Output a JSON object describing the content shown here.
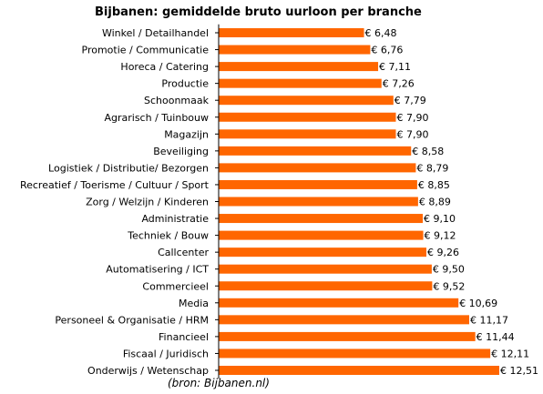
{
  "chart_data": {
    "type": "bar",
    "orientation": "horizontal",
    "title": "Bijbanen: gemiddelde bruto uurloon per branche",
    "source": "(bron: Bijbanen.nl)",
    "value_prefix": "€ ",
    "bar_color": "#ff6600",
    "xlim": [
      0,
      12.51
    ],
    "grid": false,
    "categories": [
      "Winkel / Detailhandel",
      "Promotie / Communicatie",
      "Horeca / Catering",
      "Productie",
      "Schoonmaak",
      "Agrarisch / Tuinbouw",
      "Magazijn",
      "Beveiliging",
      "Logistiek / Distributie/ Bezorgen",
      "Recreatief / Toerisme / Cultuur / Sport",
      "Zorg / Welzijn / Kinderen",
      "Administratie",
      "Techniek / Bouw",
      "Callcenter",
      "Automatisering / ICT",
      "Commercieel",
      "Media",
      "Personeel & Organisatie / HRM",
      "Financieel",
      "Fiscaal / Juridisch",
      "Onderwijs / Wetenschap"
    ],
    "values": [
      6.48,
      6.76,
      7.11,
      7.26,
      7.79,
      7.9,
      7.9,
      8.58,
      8.79,
      8.85,
      8.89,
      9.1,
      9.12,
      9.26,
      9.5,
      9.52,
      10.69,
      11.17,
      11.44,
      12.11,
      12.51
    ],
    "value_labels": [
      "6,48",
      "6,76",
      "7,11",
      "7,26",
      "7,79",
      "7,90",
      "7,90",
      "8,58",
      "8,79",
      "8,85",
      "8,89",
      "9,10",
      "9,12",
      "9,26",
      "9,50",
      "9,52",
      "10,69",
      "11,17",
      "11,44",
      "12,11",
      "12,51"
    ]
  }
}
